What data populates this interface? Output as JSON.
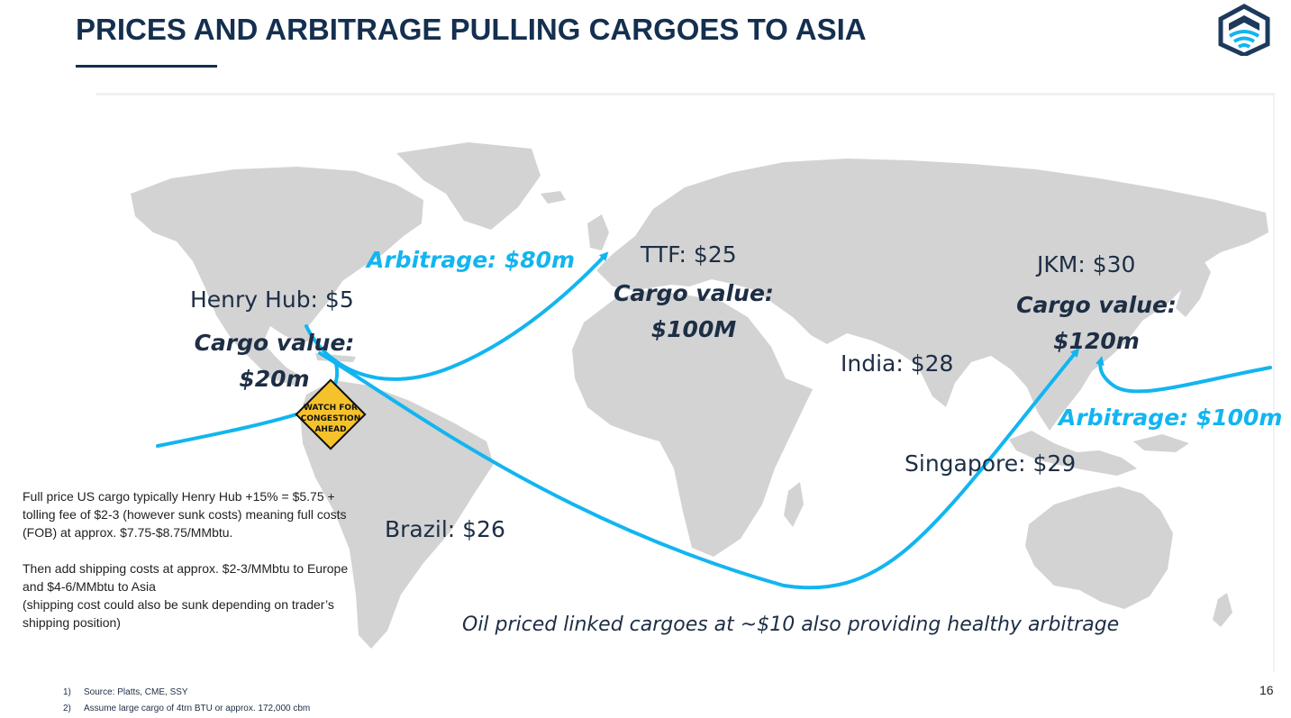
{
  "title": "PRICES AND ARBITRAGE PULLING CARGOES TO ASIA",
  "colors": {
    "title": "#142f4f",
    "accent": "#12b5f0",
    "land": "#d3d3d3",
    "sign": "#f6c22b"
  },
  "map": {
    "henry_hub": {
      "price": "Henry Hub: $5",
      "cargo_line1": "Cargo value:",
      "cargo_line2": "$20m"
    },
    "ttf": {
      "price": "TTF: $25",
      "cargo_line1": "Cargo value:",
      "cargo_line2": "$100M"
    },
    "jkm": {
      "price": "JKM: $30",
      "cargo_line1": "Cargo value:",
      "cargo_line2": "$120m"
    },
    "india": "India: $28",
    "singapore": "Singapore: $29",
    "brazil": "Brazil: $26",
    "arbitrage_europe": "Arbitrage: $80m",
    "arbitrage_asia": "Arbitrage: $100m",
    "sign": {
      "line1": "WATCH FOR",
      "line2": "CONGESTION",
      "line3": "AHEAD"
    }
  },
  "note": {
    "p1": "Full price US cargo typically Henry Hub +15% = $5.75 + tolling fee of $2-3 (however sunk costs) meaning full costs (FOB) at approx. $7.75-$8.75/MMbtu.",
    "p2": "Then add shipping costs at approx. $2-3/MMbtu to Europe and $4-6/MMbtu to Asia",
    "p3": "(shipping cost could also be sunk depending on trader’s shipping position)"
  },
  "oil_note": "Oil priced linked cargoes at ~$10 also providing healthy arbitrage",
  "footnotes": [
    {
      "num": "1)",
      "text": "Source: Platts, CME, SSY"
    },
    {
      "num": "2)",
      "text": "Assume large cargo of 4trn BTU or approx.  172,000 cbm"
    }
  ],
  "page_number": "16"
}
